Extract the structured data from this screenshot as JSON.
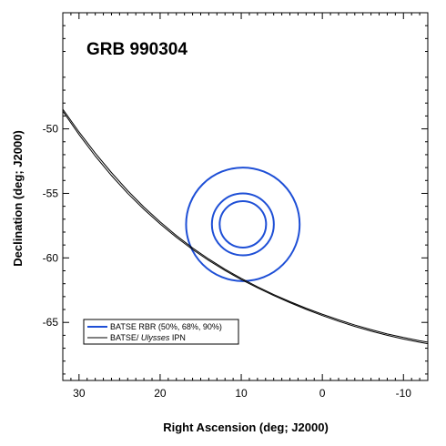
{
  "chart_data": {
    "type": "line",
    "title": "GRB 990304",
    "xlabel": "Right Ascension (deg; J2000)",
    "ylabel": "Declination (deg; J2000)",
    "xlim": [
      32,
      -13
    ],
    "ylim": [
      -69.5,
      -41
    ],
    "x_ticks": [
      30,
      20,
      10,
      0,
      -10
    ],
    "y_ticks": [
      -50,
      -55,
      -60,
      -65
    ],
    "x_tick_labels": [
      "30",
      "20",
      "10",
      "0",
      "-10"
    ],
    "y_tick_labels": [
      "-50",
      "-55",
      "-60",
      "-65"
    ],
    "grid": false,
    "legend_position": "bottom-left",
    "series": [
      {
        "name": "BATSE RBR (50%, 68%, 90%)",
        "color": "#1e4fd6",
        "kind": "error-circles",
        "center": [
          9.8,
          -57.4
        ],
        "radii_dec": [
          1.8,
          2.4,
          4.4
        ],
        "legend_label_main": "BATSE RBR ",
        "legend_label_pct": "(50%, 68%, 90%)"
      },
      {
        "name": "BATSE/Ulysses IPN",
        "color": "#000000",
        "kind": "annulus-lines",
        "legend_label_main": "BATSE/ ",
        "legend_label_italic": "Ulysses",
        "legend_label_tail": " IPN",
        "lines": [
          {
            "x": [
              32.2,
              30,
              28,
              26,
              24,
              22,
              20,
              18,
              16,
              14,
              12,
              10,
              8,
              6,
              4,
              2,
              0,
              -2,
              -4,
              -6,
              -8,
              -10,
              -12,
              -13.2
            ],
            "y": [
              -48.3,
              -50.24,
              -51.88,
              -53.39,
              -54.79,
              -56.06,
              -57.21,
              -58.27,
              -59.23,
              -60.09,
              -60.88,
              -61.59,
              -62.24,
              -62.84,
              -63.39,
              -63.9,
              -64.37,
              -64.8,
              -65.2,
              -65.56,
              -65.89,
              -66.17,
              -66.42,
              -66.55
            ]
          },
          {
            "x": [
              32.2,
              30,
              28,
              26,
              24,
              22,
              20,
              18,
              16,
              14,
              12,
              10,
              8,
              6,
              4,
              2,
              0,
              -2,
              -4,
              -6,
              -8,
              -10,
              -12,
              -13.2
            ],
            "y": [
              -48.45,
              -50.44,
              -52.11,
              -53.62,
              -55.0,
              -56.24,
              -57.37,
              -58.41,
              -59.35,
              -60.2,
              -60.98,
              -61.68,
              -62.32,
              -62.92,
              -63.47,
              -63.99,
              -64.47,
              -64.91,
              -65.31,
              -65.67,
              -66.0,
              -66.29,
              -66.54,
              -66.67
            ]
          }
        ]
      }
    ]
  }
}
